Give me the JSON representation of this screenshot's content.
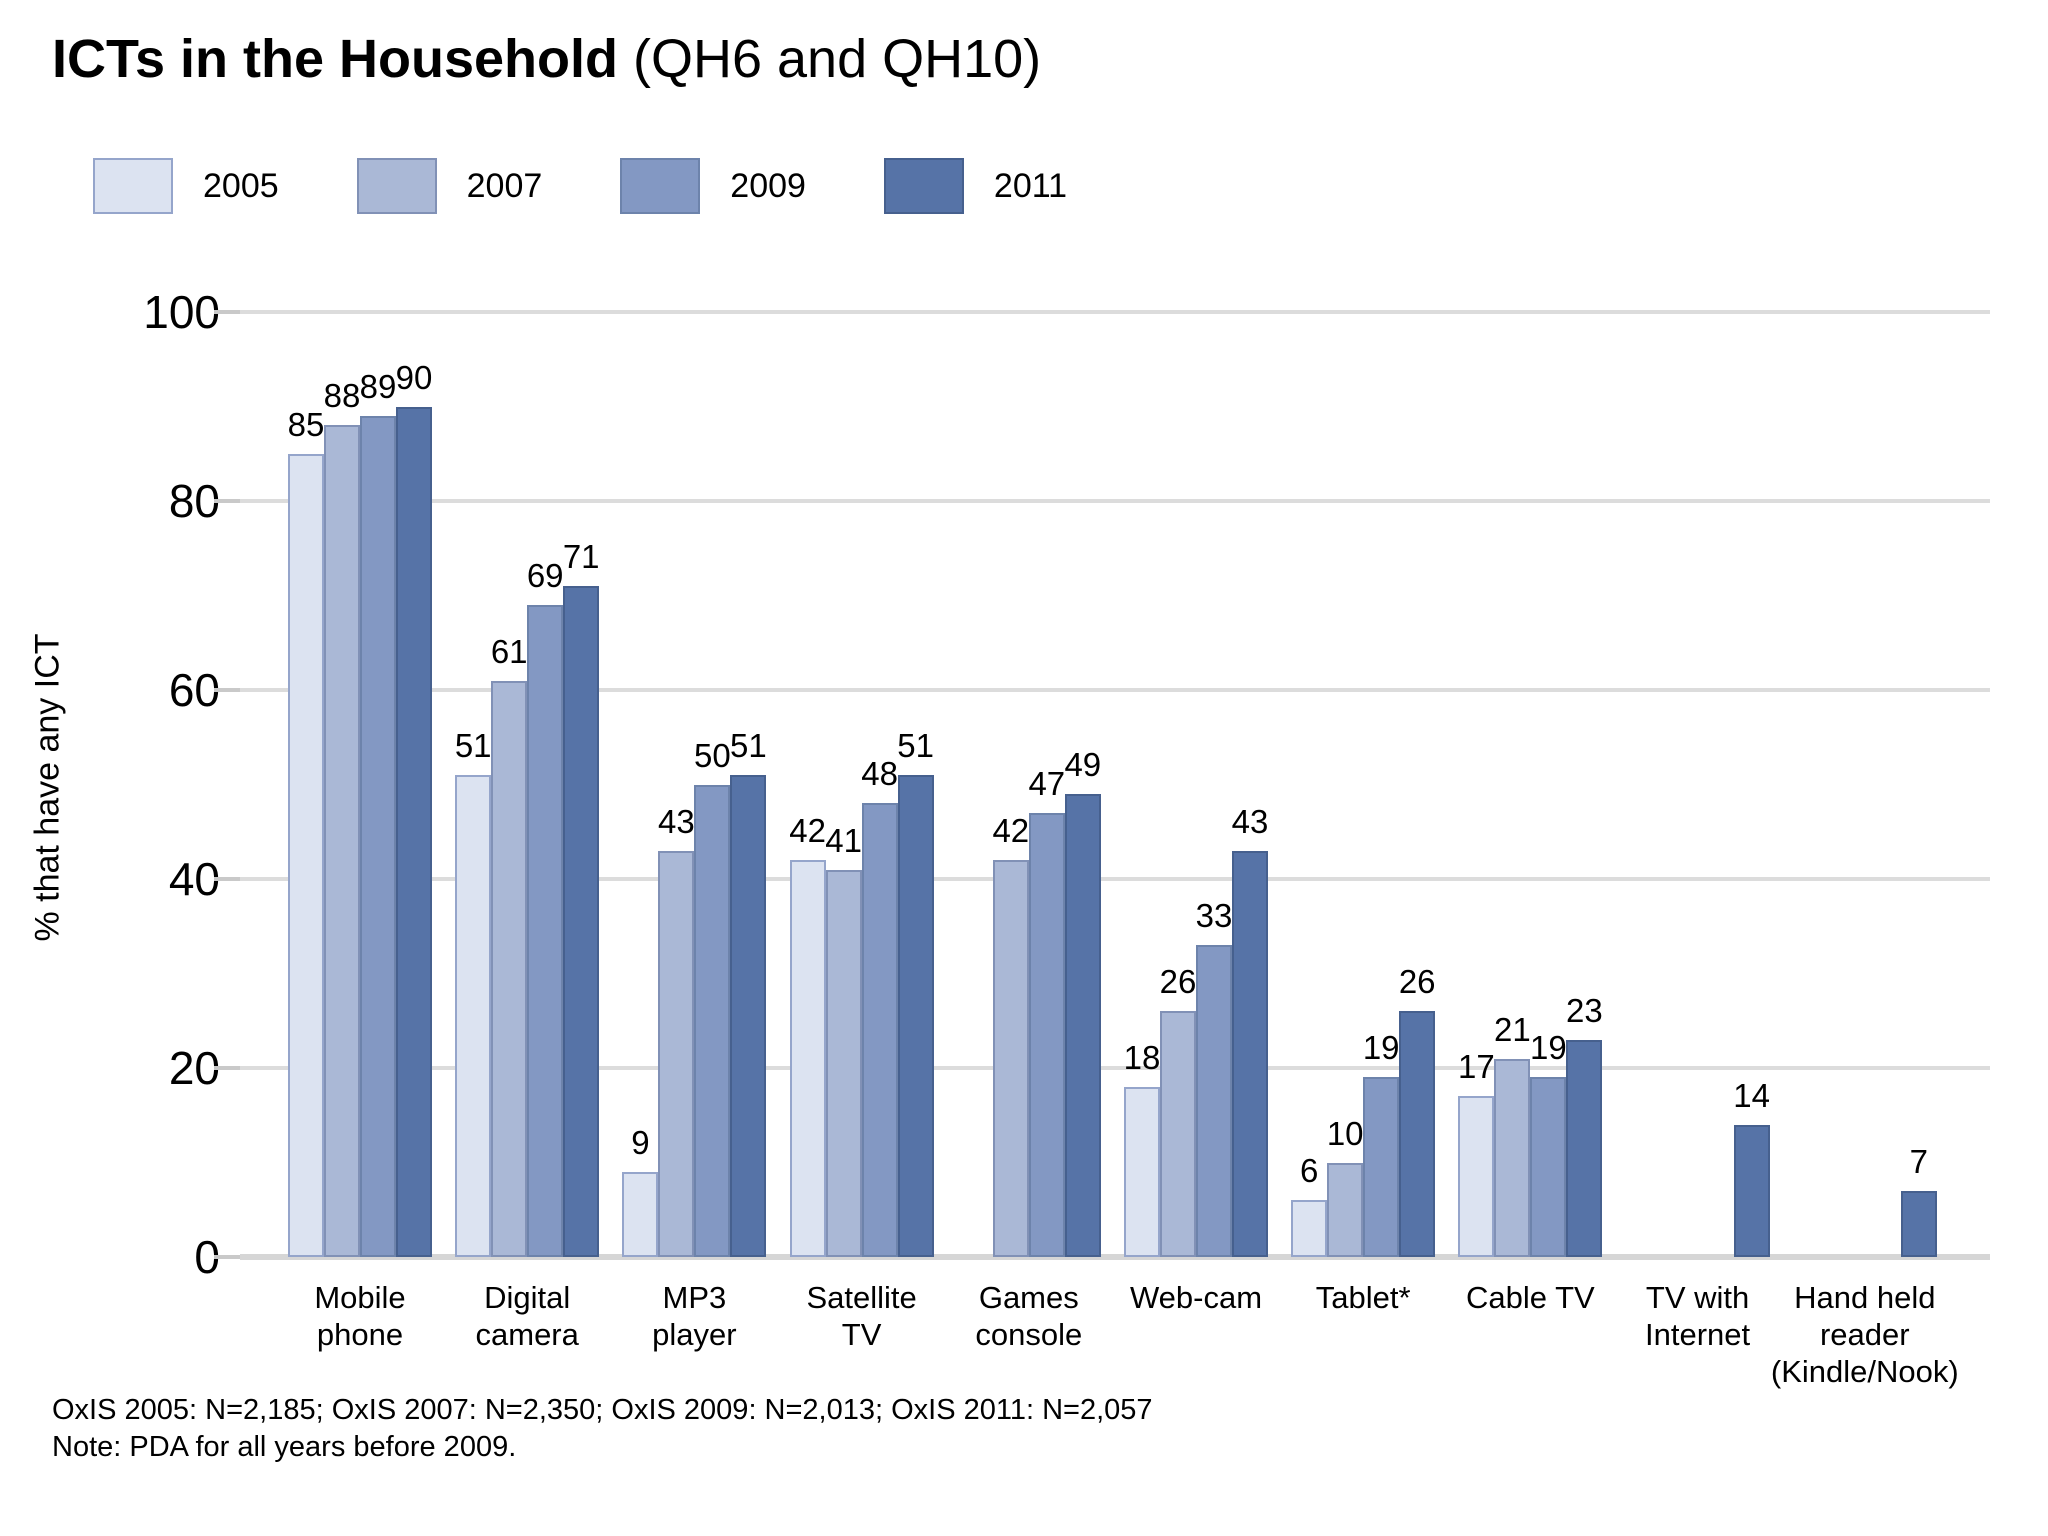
{
  "title": {
    "main": "ICTs in the Household",
    "suffix": " (QH6 and QH10)"
  },
  "y_axis": {
    "ticks": [
      0,
      20,
      40,
      60,
      80,
      100
    ]
  },
  "footnote": {
    "line1": "OxIS 2005: N=2,185; OxIS 2007: N=2,350; OxIS 2009: N=2,013; OxIS 2011: N=2,057",
    "line2": "Note: PDA for all years before 2009."
  },
  "chart_data": {
    "type": "bar",
    "title": "ICTs in the Household (QH6 and QH10)",
    "xlabel": "",
    "ylabel": "% that have any ICT",
    "ylim": [
      0,
      100
    ],
    "grid": true,
    "legend_position": "top-left",
    "categories": [
      "Mobile phone",
      "Digital camera",
      "MP3 player",
      "Satellite TV",
      "Games console",
      "Web-cam",
      "Tablet*",
      "Cable TV",
      "TV with Internet",
      "Hand held reader (Kindle/Nook)"
    ],
    "category_label_lines": [
      [
        "Mobile",
        "phone"
      ],
      [
        "Digital",
        "camera"
      ],
      [
        "MP3",
        "player"
      ],
      [
        "Satellite",
        "TV"
      ],
      [
        "Games",
        "console"
      ],
      [
        "Web-cam"
      ],
      [
        "Tablet*"
      ],
      [
        "Cable TV"
      ],
      [
        "TV with",
        "Internet"
      ],
      [
        "Hand held",
        "reader",
        "(Kindle/Nook)"
      ]
    ],
    "series": [
      {
        "name": "2005",
        "color": "#dce3f1",
        "border": "#95a5cb",
        "values": [
          85,
          51,
          9,
          42,
          null,
          18,
          6,
          17,
          null,
          null
        ]
      },
      {
        "name": "2007",
        "color": "#aab8d6",
        "border": "#8191b6",
        "values": [
          88,
          61,
          43,
          41,
          42,
          26,
          10,
          21,
          null,
          null
        ]
      },
      {
        "name": "2009",
        "color": "#8398c3",
        "border": "#6d83ab",
        "values": [
          89,
          69,
          50,
          48,
          47,
          33,
          19,
          19,
          null,
          null
        ]
      },
      {
        "name": "2011",
        "color": "#5673a7",
        "border": "#46608e",
        "values": [
          90,
          71,
          51,
          51,
          49,
          43,
          26,
          23,
          14,
          7
        ]
      }
    ]
  }
}
